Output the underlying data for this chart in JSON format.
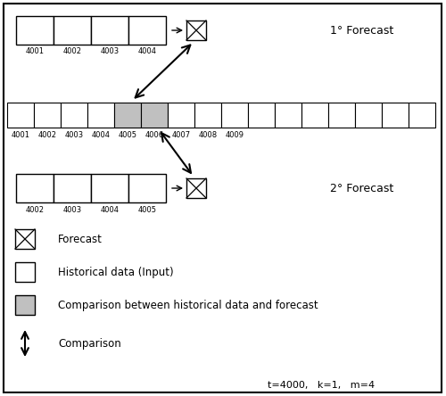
{
  "fig_width": 5.0,
  "fig_height": 4.44,
  "dpi": 100,
  "bg_color": "#ffffff",
  "border_color": "#000000",
  "cell_color_white": "#ffffff",
  "cell_color_gray": "#c0c0c0",
  "forecast_label_1": "1° Forecast",
  "forecast_label_2": "2° Forecast",
  "labels_row1": [
    "4001",
    "4002",
    "4003",
    "4004"
  ],
  "labels_row2": [
    "4001",
    "4002",
    "4003",
    "4004",
    "4005",
    "4006",
    "4007",
    "4008",
    "4009"
  ],
  "labels_row3": [
    "4002",
    "4003",
    "4004",
    "4005"
  ],
  "legend_forecast": "Forecast",
  "legend_historical": "Historical data (Input)",
  "legend_comparison_box": "Comparison between historical data and forecast",
  "legend_comparison_arrow": "Comparison",
  "bottom_text": "t=4000,   k=1,   m=4"
}
